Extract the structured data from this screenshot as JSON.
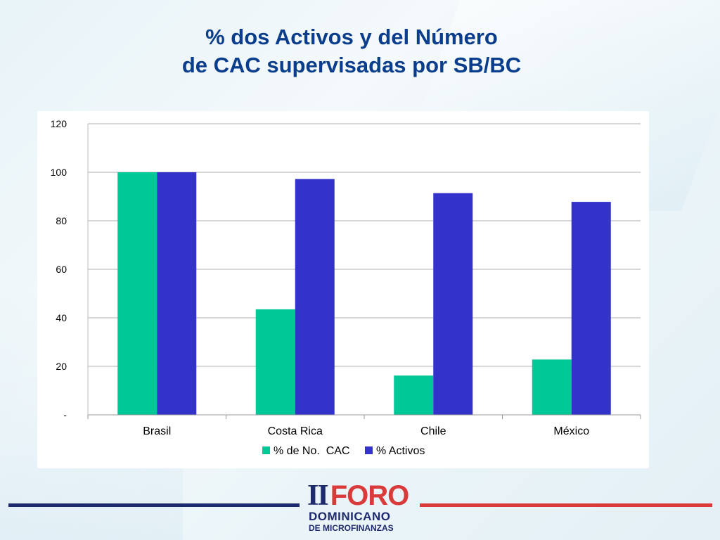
{
  "slide": {
    "title_line1": "% dos Activos y del Número",
    "title_line2": "de CAC supervisadas por SB/BC"
  },
  "colors": {
    "title": "#0a3d8c",
    "series_cac": "#00c896",
    "series_activos": "#3333cc",
    "gridline": "#b0b0b0",
    "footer_left": "#1e2a6e",
    "footer_right": "#d93a3a"
  },
  "chart_data": {
    "type": "bar",
    "title": "",
    "xlabel": "",
    "ylabel": "",
    "categories": [
      "Brasil",
      "Costa Rica",
      "Chile",
      "México"
    ],
    "series": [
      {
        "name": "% de No.  CAC",
        "color": "#00c896",
        "values": [
          100,
          43.5,
          16.2,
          22.8
        ]
      },
      {
        "name": "% Activos",
        "color": "#3333cc",
        "values": [
          100,
          97.2,
          91.4,
          87.8
        ]
      }
    ],
    "ylim": [
      0,
      120
    ],
    "yticks": [
      0,
      20,
      40,
      60,
      80,
      100,
      120
    ],
    "ytick_labels": [
      "-",
      "20",
      "40",
      "60",
      "80",
      "100",
      "120"
    ],
    "grid": true,
    "legend_position": "bottom"
  },
  "logo": {
    "roman": "II",
    "word": "FORO",
    "line1": "DOMINICANO",
    "line2": "DE MICROFINANZAS",
    "icon": "people-illustration-icon"
  }
}
